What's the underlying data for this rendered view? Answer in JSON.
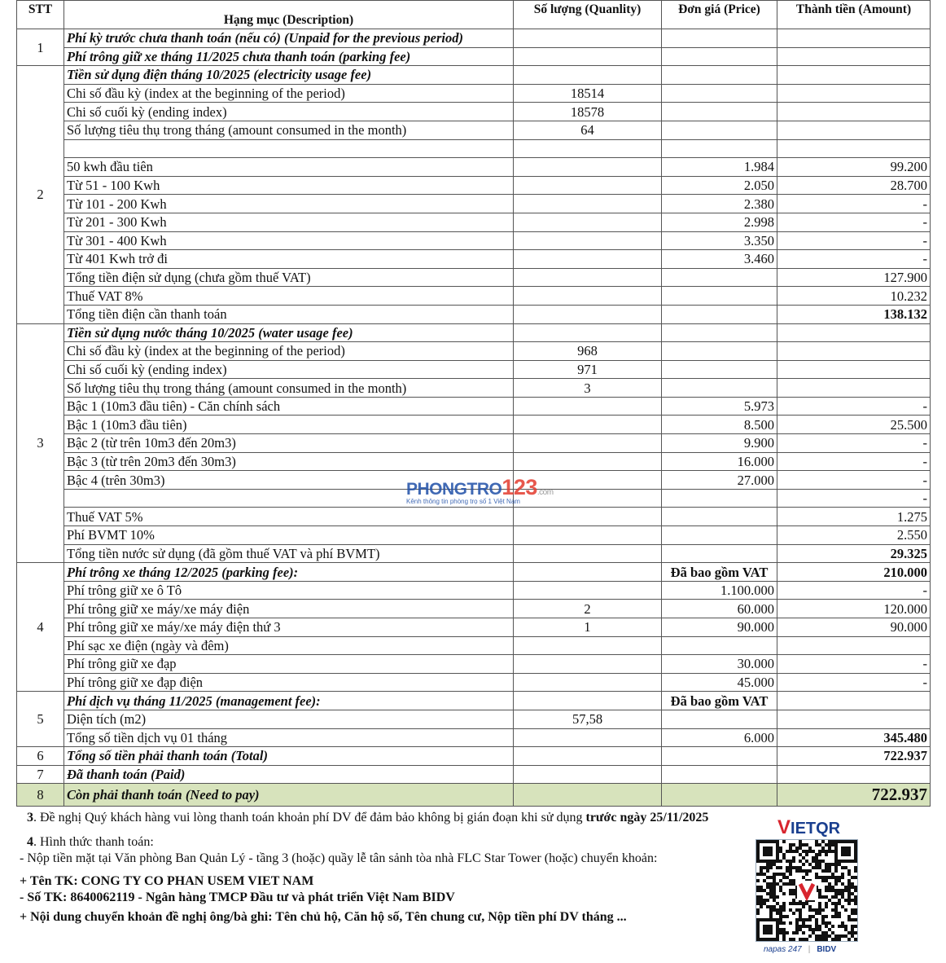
{
  "header": {
    "stt": "STT",
    "description": "Hạng mục (Description)",
    "quantity": "Số lượng (Quanlity)",
    "price": "Đơn giá (Price)",
    "amount": "Thành tiền (Amount)"
  },
  "groups": [
    {
      "stt": "1",
      "rows": [
        {
          "kind": "section",
          "desc": "Phí kỳ trước chưa thanh toán (nếu có) (Unpaid for the previous period)"
        },
        {
          "kind": "section",
          "desc": "Phí trông giữ xe tháng 11/2025 chưa thanh toán (parking fee)"
        }
      ]
    },
    {
      "stt": "2",
      "rows": [
        {
          "kind": "section",
          "desc": "Tiền sử dụng điện tháng 10/2025 (electricity usage fee)"
        },
        {
          "desc": "Chi số đầu kỳ (index at the beginning of the period)",
          "qty": "18514"
        },
        {
          "desc": "Chi số cuối kỳ (ending index)",
          "qty": "18578"
        },
        {
          "desc": "Số lượng tiêu thụ trong tháng (amount consumed in the month)",
          "qty": "64"
        },
        {
          "desc": ""
        },
        {
          "kind": "indent",
          "desc": "50 kwh đầu tiên",
          "price": "1.984",
          "amount": "99.200"
        },
        {
          "kind": "indent",
          "desc": "Từ 51 - 100 Kwh",
          "price": "2.050",
          "amount": "28.700"
        },
        {
          "kind": "indent",
          "desc": "Từ 101 - 200 Kwh",
          "price": "2.380",
          "amount": "-"
        },
        {
          "kind": "indent",
          "desc": "Từ 201 - 300 Kwh",
          "price": "2.998",
          "amount": "-"
        },
        {
          "kind": "indent",
          "desc": "Từ 301 - 400 Kwh",
          "price": "3.350",
          "amount": "-"
        },
        {
          "kind": "indent",
          "desc": "Từ 401 Kwh trở đi",
          "price": "3.460",
          "amount": "-"
        },
        {
          "desc": "Tổng tiền điện sử dụng (chưa gồm thuế VAT)",
          "amount": "127.900"
        },
        {
          "desc": "Thuế VAT 8%",
          "amount": "10.232"
        },
        {
          "kind": "bold-amount",
          "desc": "Tổng tiền điện cần thanh toán",
          "amount": "138.132"
        }
      ]
    },
    {
      "stt": "3",
      "rows": [
        {
          "kind": "section",
          "desc": "Tiền sử dụng nước tháng 10/2025 (water usage fee)"
        },
        {
          "desc": "Chi số đầu kỳ (index at the beginning of the period)",
          "qty": "968"
        },
        {
          "desc": "Chi số cuối kỳ (ending index)",
          "qty": "971"
        },
        {
          "desc": "Số lượng tiêu thụ trong tháng (amount consumed in the month)",
          "qty": "3"
        },
        {
          "kind": "indent",
          "desc": "Bậc 1 (10m3 đầu tiên) - Căn chính sách",
          "price": "5.973",
          "amount": "-"
        },
        {
          "kind": "indent",
          "desc": "Bậc 1 (10m3 đầu tiên)",
          "price": "8.500",
          "amount": "25.500"
        },
        {
          "kind": "indent",
          "desc": "Bậc 2 (từ trên 10m3 đến 20m3)",
          "price": "9.900",
          "amount": "-"
        },
        {
          "kind": "indent",
          "desc": "Bậc 3 (từ trên 20m3 đến 30m3)",
          "price": "16.000",
          "amount": "-"
        },
        {
          "kind": "indent",
          "desc": "Bậc 4 (trên 30m3)",
          "price": "27.000",
          "amount": "-"
        },
        {
          "desc": "",
          "amount": "-"
        },
        {
          "desc": "Thuế VAT 5%",
          "amount": "1.275"
        },
        {
          "desc": "Phí BVMT 10%",
          "amount": "2.550"
        },
        {
          "kind": "bold-amount",
          "desc": "Tổng tiền nước sử dụng (đã gồm thuế VAT và phí BVMT)",
          "amount": "29.325"
        }
      ]
    },
    {
      "stt": "4",
      "rows": [
        {
          "kind": "section bold-all",
          "desc": "Phí trông xe tháng 12/2025 (parking fee):",
          "price": "Đã bao gồm VAT",
          "amount": "210.000"
        },
        {
          "desc": "Phí trông giữ xe ô Tô",
          "price": "1.100.000",
          "amount": "-"
        },
        {
          "desc": "Phí trông giữ xe máy/xe máy điện",
          "qty": "2",
          "price": "60.000",
          "amount": "120.000"
        },
        {
          "desc": "Phí trông giữ xe máy/xe máy điện thứ 3",
          "qty": "1",
          "price": "90.000",
          "amount": "90.000"
        },
        {
          "desc": "Phí sạc xe điện (ngày và đêm)"
        },
        {
          "desc": "Phí trông giữ xe đạp",
          "price": "30.000",
          "amount": "-"
        },
        {
          "desc": "Phí trông giữ xe đạp điện",
          "price": "45.000",
          "amount": "-"
        }
      ]
    },
    {
      "stt": "5",
      "rows": [
        {
          "kind": "section bold-all",
          "desc": "Phí dịch vụ tháng 11/2025 (management fee):",
          "price": "Đã bao gồm VAT"
        },
        {
          "desc": "Diện tích (m2)",
          "qty": "57,58"
        },
        {
          "kind": "bold-amount",
          "desc": "Tổng số tiền dịch vụ 01 tháng",
          "price": "6.000",
          "amount": "345.480"
        }
      ]
    },
    {
      "stt": "6",
      "rows": [
        {
          "kind": "section bold-amount",
          "desc": "Tổng số tiền phải thanh toán (Total)",
          "amount": "722.937"
        }
      ]
    },
    {
      "stt": "7",
      "rows": [
        {
          "kind": "section",
          "desc": "Đã thanh toán (Paid)"
        }
      ]
    },
    {
      "stt": "8",
      "rows": [
        {
          "kind": "section bold-amount final",
          "desc": "Còn phải thanh toán (Need to pay)",
          "amount": "722.937"
        }
      ]
    }
  ],
  "watermark": {
    "brand": "PHONGTRO",
    "number": "123",
    "suffix": ".com",
    "tagline": "Kênh thông tin phòng trọ số 1 Việt Nam"
  },
  "notes": {
    "item3_number": "3",
    "item3_text": ". Đề nghị Quý khách hàng vui lòng thanh toán khoản phí DV để đảm bảo không bị gián đoạn khi sử dụng ",
    "item3_deadline": "trước ngày 25/11/2025",
    "item4_number": "4",
    "item4_text": ".  Hình thức thanh toán:",
    "cash": "- Nộp tiền mặt tại Văn phòng Ban Quản Lý - tầng 3 (hoặc) quầy lễ tân sảnh tòa nhà FLC Star Tower (hoặc) chuyển khoản:",
    "account_name": "+ Tên TK: CONG TY CO PHAN USEM VIET NAM",
    "account_no": " - Số TK: 8640062119 - Ngân hàng TMCP Đầu tư và phát triển Việt Nam BIDV",
    "content": "+ Nội dung chuyển khoản đề nghị ông/bà ghi: Tên chủ hộ, Căn hộ số, Tên chung cư, Nộp tiền phí DV tháng ..."
  },
  "payment": {
    "vietqr_v": "V",
    "vietqr_rest": "IETQR",
    "napas": "napas 247",
    "bidv": "BIDV"
  },
  "colors": {
    "final_row_bg": "#d7e3bc",
    "vietqr_red": "#d8252e",
    "brand_blue": "#1a3f8f"
  }
}
